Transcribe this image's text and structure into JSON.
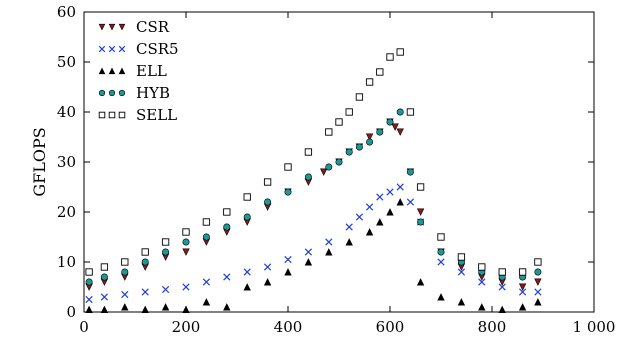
{
  "chart_data": {
    "type": "scatter",
    "ylabel": "GFLOPS",
    "xlabel": "",
    "xlim": [
      0,
      1000
    ],
    "ylim": [
      0,
      60
    ],
    "xticks": [
      0,
      200,
      400,
      600,
      800,
      1000
    ],
    "xtick_labels": [
      "0",
      "200",
      "400",
      "600",
      "800",
      "1 000"
    ],
    "yticks": [
      0,
      10,
      20,
      30,
      40,
      50,
      60
    ],
    "ytick_labels": [
      "0",
      "10",
      "20",
      "30",
      "40",
      "50",
      "60"
    ],
    "grid": false,
    "legend_position": "top-left",
    "series": [
      {
        "name": "CSR",
        "marker": "triangle-down",
        "color": "#8b1a1a",
        "x": [
          10,
          40,
          80,
          120,
          160,
          200,
          240,
          280,
          320,
          360,
          400,
          440,
          470,
          500,
          520,
          540,
          560,
          580,
          600,
          610,
          620,
          640,
          660,
          700,
          740,
          780,
          820,
          860,
          890
        ],
        "y": [
          5,
          6,
          7,
          9,
          11,
          12,
          14,
          16,
          18,
          21,
          24,
          26,
          28,
          30,
          32,
          33,
          35,
          36,
          38,
          37,
          36,
          28,
          20,
          12,
          9,
          7,
          6,
          5,
          6
        ]
      },
      {
        "name": "CSR5",
        "marker": "x",
        "color": "#1f3fe0",
        "x": [
          10,
          40,
          80,
          120,
          160,
          200,
          240,
          280,
          320,
          360,
          400,
          440,
          480,
          520,
          540,
          560,
          580,
          600,
          620,
          640,
          660,
          700,
          740,
          780,
          820,
          860,
          890
        ],
        "y": [
          2.5,
          3,
          3.5,
          4,
          4.5,
          5,
          6,
          7,
          8,
          9,
          10.5,
          12,
          14,
          17,
          19,
          21,
          23,
          24,
          25,
          22,
          18,
          10,
          8,
          6,
          5,
          4,
          4
        ]
      },
      {
        "name": "ELL",
        "marker": "triangle-up",
        "color": "#000000",
        "x": [
          10,
          40,
          80,
          120,
          160,
          200,
          240,
          280,
          320,
          360,
          400,
          440,
          480,
          520,
          560,
          580,
          600,
          620,
          660,
          700,
          740,
          780,
          820,
          860,
          890
        ],
        "y": [
          0.5,
          0.5,
          1,
          0.5,
          1,
          0.5,
          2,
          1,
          5,
          6,
          8,
          10,
          12,
          14,
          16,
          18,
          20,
          22,
          6,
          3,
          2,
          1,
          0.5,
          1,
          2
        ]
      },
      {
        "name": "HYB",
        "marker": "circle",
        "color": "#1a9a96",
        "x": [
          10,
          40,
          80,
          120,
          160,
          200,
          240,
          280,
          320,
          360,
          400,
          440,
          480,
          500,
          520,
          540,
          560,
          580,
          600,
          620,
          640,
          660,
          700,
          740,
          780,
          820,
          860,
          890
        ],
        "y": [
          6,
          7,
          8,
          10,
          12,
          14,
          15,
          17,
          19,
          22,
          24,
          27,
          29,
          30,
          32,
          33,
          34,
          36,
          38,
          40,
          28,
          18,
          12,
          10,
          8,
          7,
          7,
          8
        ]
      },
      {
        "name": "SELL",
        "marker": "square",
        "color": "#000000",
        "x": [
          10,
          40,
          80,
          120,
          160,
          200,
          240,
          280,
          320,
          360,
          400,
          440,
          480,
          500,
          520,
          540,
          560,
          580,
          600,
          620,
          640,
          660,
          700,
          740,
          780,
          820,
          860,
          890
        ],
        "y": [
          8,
          9,
          10,
          12,
          14,
          16,
          18,
          20,
          23,
          26,
          29,
          32,
          36,
          38,
          40,
          43,
          46,
          48,
          51,
          52,
          40,
          25,
          15,
          11,
          9,
          8,
          8,
          10
        ]
      }
    ]
  }
}
